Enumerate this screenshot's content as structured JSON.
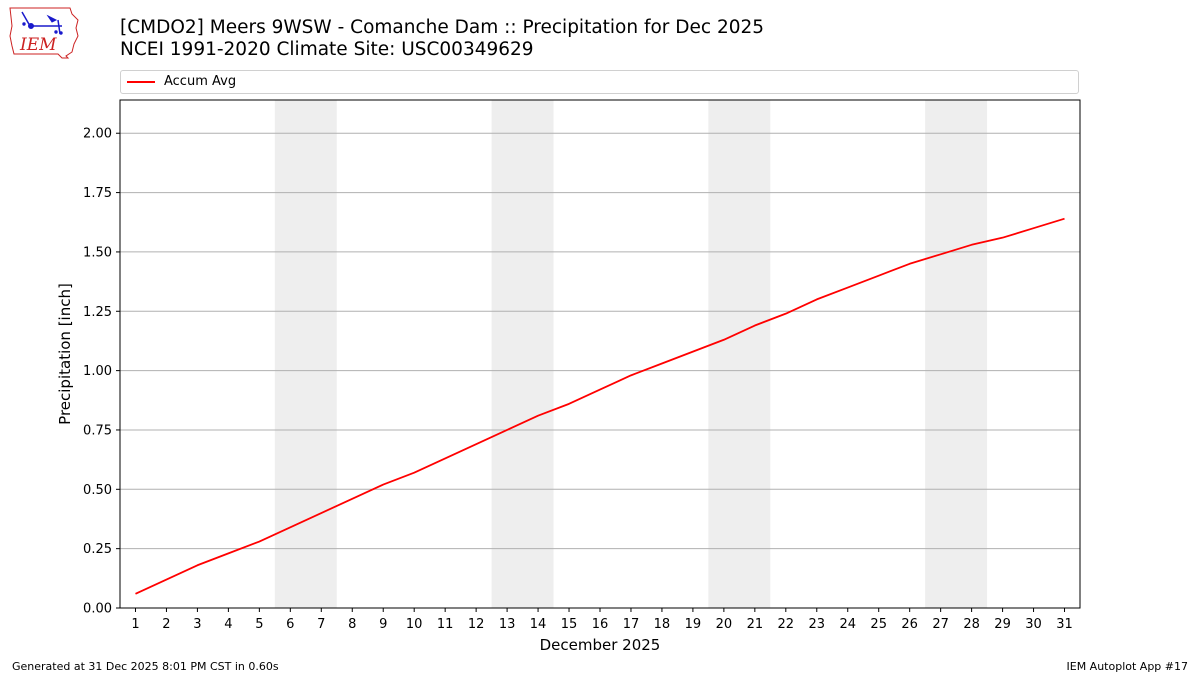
{
  "header": {
    "title_line1": "[CMDO2] Meers 9WSW - Comanche Dam :: Precipitation for Dec 2025",
    "title_line2": "NCEI 1991-2020 Climate Site: USC00349629",
    "logo_text": "IEM"
  },
  "legend": {
    "items": [
      {
        "label": "Accum Avg",
        "color": "#ff0000"
      }
    ]
  },
  "footer": {
    "left": "Generated at 31 Dec 2025 8:01 PM CST in 0.60s",
    "right": "IEM Autoplot App #17"
  },
  "colors": {
    "line": "#ff0000",
    "weekend_band": "#eeeeee",
    "grid": "#b0b0b0",
    "logo": "#1a1acc",
    "logo_text": "#cc2222"
  },
  "chart_data": {
    "type": "line",
    "xlabel": "December 2025",
    "ylabel": "Precipitation [inch]",
    "xlim": [
      0.5,
      31.5
    ],
    "ylim": [
      0,
      2.14
    ],
    "x_ticks": [
      1,
      2,
      3,
      4,
      5,
      6,
      7,
      8,
      9,
      10,
      11,
      12,
      13,
      14,
      15,
      16,
      17,
      18,
      19,
      20,
      21,
      22,
      23,
      24,
      25,
      26,
      27,
      28,
      29,
      30,
      31
    ],
    "y_ticks": [
      0.0,
      0.25,
      0.5,
      0.75,
      1.0,
      1.25,
      1.5,
      1.75,
      2.0
    ],
    "y_tick_labels": [
      "0.00",
      "0.25",
      "0.50",
      "0.75",
      "1.00",
      "1.25",
      "1.50",
      "1.75",
      "2.00"
    ],
    "grid": "horizontal",
    "legend_position": "top",
    "weekend_bands": [
      [
        5.5,
        7.5
      ],
      [
        12.5,
        14.5
      ],
      [
        19.5,
        21.5
      ],
      [
        26.5,
        28.5
      ]
    ],
    "series": [
      {
        "name": "Accum Avg",
        "x": [
          1,
          2,
          3,
          4,
          5,
          6,
          7,
          8,
          9,
          10,
          11,
          12,
          13,
          14,
          15,
          16,
          17,
          18,
          19,
          20,
          21,
          22,
          23,
          24,
          25,
          26,
          27,
          28,
          29,
          30,
          31
        ],
        "values": [
          0.06,
          0.12,
          0.18,
          0.23,
          0.28,
          0.34,
          0.4,
          0.46,
          0.52,
          0.57,
          0.63,
          0.69,
          0.75,
          0.81,
          0.86,
          0.92,
          0.98,
          1.03,
          1.08,
          1.13,
          1.19,
          1.24,
          1.3,
          1.35,
          1.4,
          1.45,
          1.49,
          1.53,
          1.56,
          1.6,
          1.64
        ]
      }
    ]
  }
}
